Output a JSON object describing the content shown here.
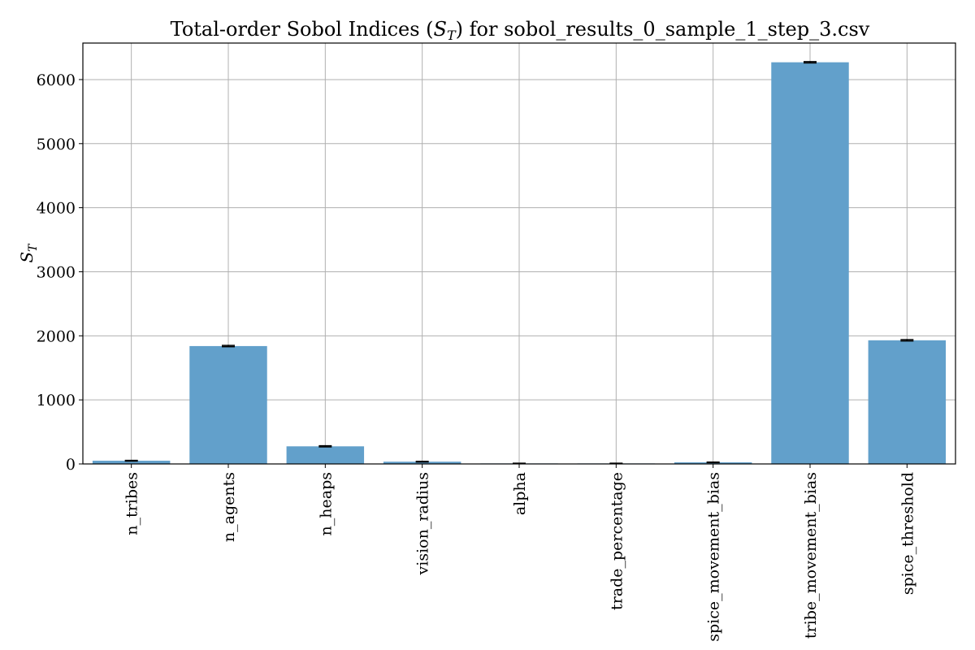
{
  "chart_data": {
    "type": "bar",
    "title": "Total-order Sobol Indices (S_T) for sobol_results_0_sample_1_step_3.csv",
    "title_parts": {
      "prefix": "Total-order Sobol Indices (",
      "symbol": "S",
      "subscript": "T",
      "suffix": ") for sobol_results_0_sample_1_step_3.csv"
    },
    "ylabel": {
      "symbol": "S",
      "subscript": "T"
    },
    "xlabel": "",
    "categories": [
      "n_tribes",
      "n_agents",
      "n_heaps",
      "vision_radius",
      "alpha",
      "trade_percentage",
      "spice_movement_bias",
      "tribe_movement_bias",
      "spice_threshold"
    ],
    "values": [
      50,
      1840,
      275,
      35,
      8,
      8,
      25,
      6270,
      1930
    ],
    "errors": [
      5,
      10,
      8,
      5,
      3,
      3,
      4,
      10,
      10
    ],
    "ylim": [
      0,
      6570
    ],
    "yticks": [
      0,
      1000,
      2000,
      3000,
      4000,
      5000,
      6000
    ],
    "grid": true,
    "colors": {
      "bar": "#62a0cb",
      "error": "#000000",
      "grid": "#b0b0b0"
    }
  }
}
